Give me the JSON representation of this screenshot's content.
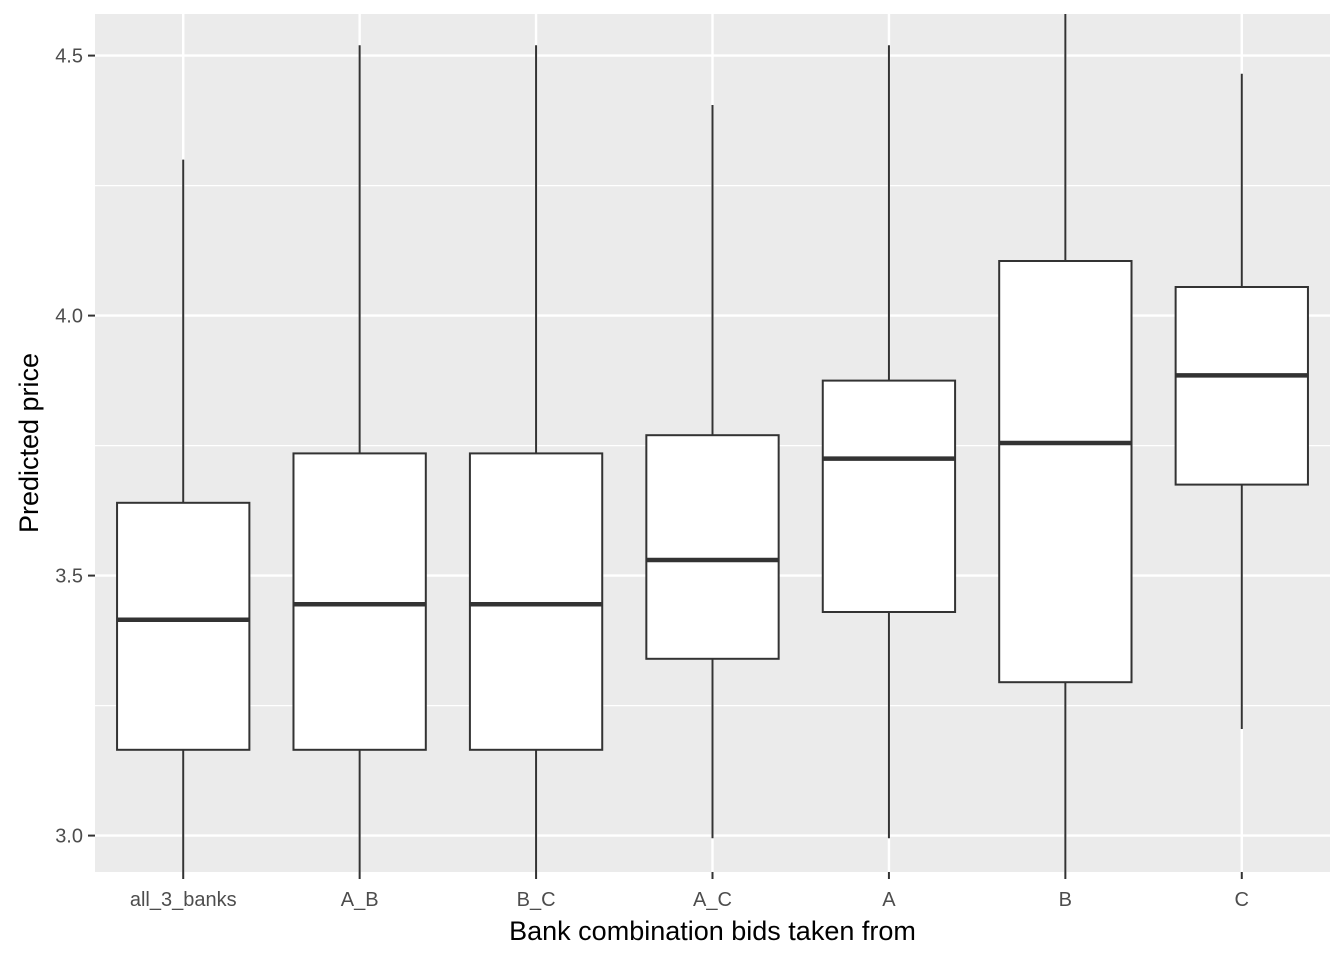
{
  "chart_data": {
    "type": "boxplot",
    "xlabel": "Bank combination bids taken from",
    "ylabel": "Predicted price",
    "ylim": [
      2.93,
      4.58
    ],
    "yticks": [
      3.0,
      3.5,
      4.0,
      4.5
    ],
    "ytick_labels": [
      "3.0",
      "3.5",
      "4.0",
      "4.5"
    ],
    "grid": true,
    "categories": [
      "all_3_banks",
      "A_B",
      "B_C",
      "A_C",
      "A",
      "B",
      "C"
    ],
    "boxes": [
      {
        "category": "all_3_banks",
        "whisker_low": 2.93,
        "q1": 3.165,
        "median": 3.415,
        "q3": 3.64,
        "whisker_high": 4.3
      },
      {
        "category": "A_B",
        "whisker_low": 2.93,
        "q1": 3.165,
        "median": 3.445,
        "q3": 3.735,
        "whisker_high": 4.52
      },
      {
        "category": "B_C",
        "whisker_low": 2.93,
        "q1": 3.165,
        "median": 3.445,
        "q3": 3.735,
        "whisker_high": 4.52
      },
      {
        "category": "A_C",
        "whisker_low": 2.995,
        "q1": 3.34,
        "median": 3.53,
        "q3": 3.77,
        "whisker_high": 4.405
      },
      {
        "category": "A",
        "whisker_low": 2.995,
        "q1": 3.43,
        "median": 3.725,
        "q3": 3.875,
        "whisker_high": 4.52
      },
      {
        "category": "B",
        "whisker_low": 2.93,
        "q1": 3.295,
        "median": 3.755,
        "q3": 4.105,
        "whisker_high": 4.58
      },
      {
        "category": "C",
        "whisker_low": 3.205,
        "q1": 3.675,
        "median": 3.885,
        "q3": 4.055,
        "whisker_high": 4.465
      }
    ],
    "colors": {
      "panel_background": "#EBEBEB",
      "grid": "#FFFFFF",
      "box_fill": "#FFFFFF",
      "box_stroke": "#333333",
      "tick_text": "#4D4D4D",
      "title_text": "#000000"
    }
  }
}
